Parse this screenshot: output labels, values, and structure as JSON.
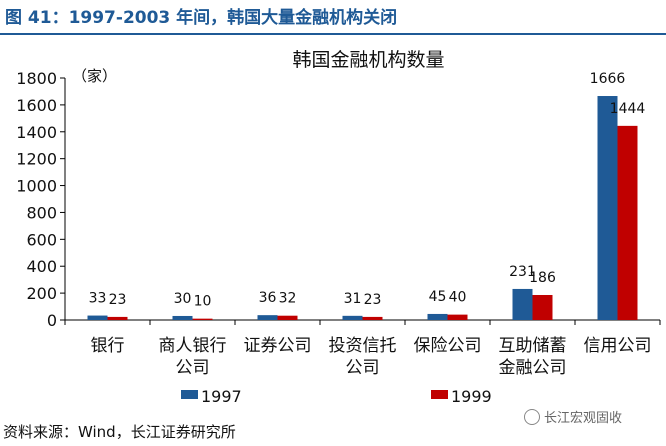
{
  "figure_title": "图 41：1997-2003 年间，韩国大量金融机构关闭",
  "source": "资料来源：Wind，长江证券研究所",
  "watermark": "长江宏观固收",
  "colors": {
    "title": "#1f5a96",
    "series_1997": "#1f5a96",
    "series_1999": "#c00000"
  },
  "chart_data": {
    "type": "bar",
    "title": "韩国金融机构数量",
    "unit_label": "（家）",
    "categories": [
      "银行",
      "商人银行公司",
      "证券公司",
      "投资信托公司",
      "保险公司",
      "互助储蓄金融公司",
      "信用公司"
    ],
    "category_lines": [
      [
        "银行"
      ],
      [
        "商人银行",
        "公司"
      ],
      [
        "证券公司"
      ],
      [
        "投资信托",
        "公司"
      ],
      [
        "保险公司"
      ],
      [
        "互助储蓄",
        "金融公司"
      ],
      [
        "信用公司"
      ]
    ],
    "series": [
      {
        "name": "1997",
        "values": [
          33,
          30,
          36,
          31,
          45,
          231,
          1666
        ]
      },
      {
        "name": "1999",
        "values": [
          23,
          10,
          32,
          23,
          40,
          186,
          1444
        ]
      }
    ],
    "y_ticks": [
      0,
      200,
      400,
      600,
      800,
      1000,
      1200,
      1400,
      1600,
      1800
    ],
    "ylim": [
      0,
      1800
    ],
    "grid": false,
    "legend": "bottom"
  }
}
